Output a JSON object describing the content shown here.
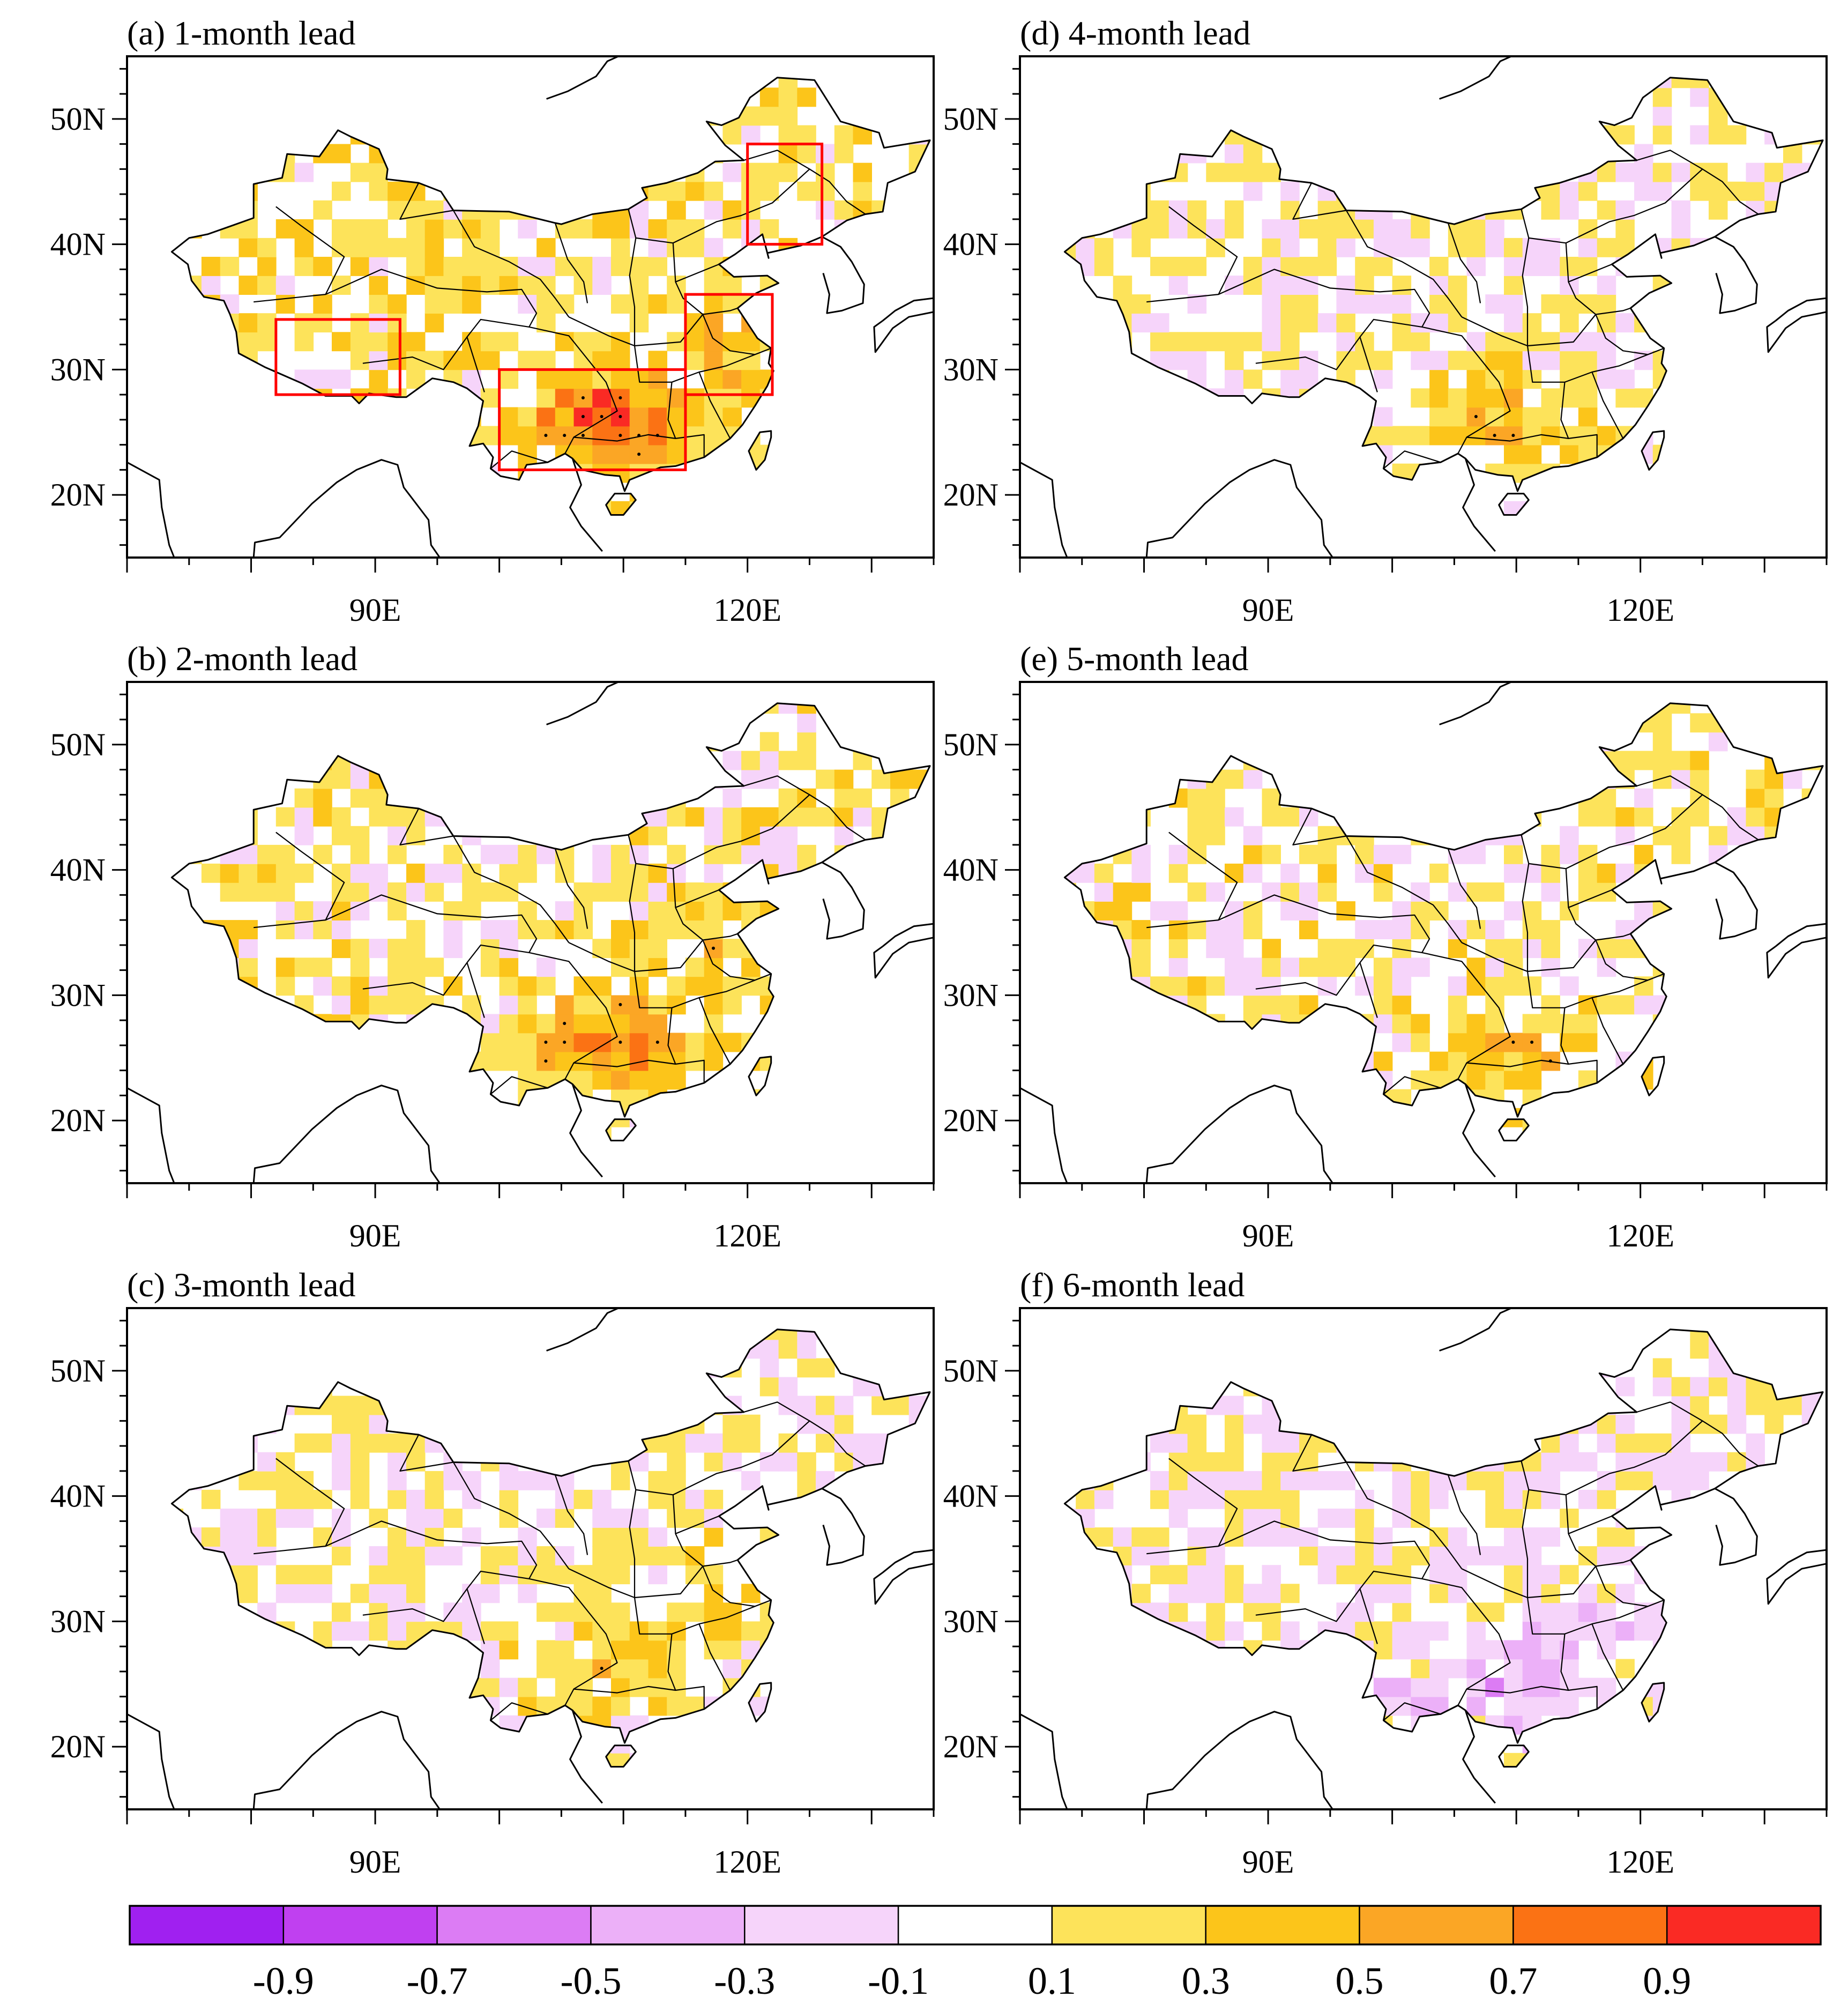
{
  "panels": [
    {
      "title": "(a) 1-month lead",
      "lat_labels": [
        "50N",
        "40N",
        "30N",
        "20N"
      ],
      "lon_labels": [
        "90E",
        "120E"
      ]
    },
    {
      "title": "(b) 2-month lead",
      "lat_labels": [
        "50N",
        "40N",
        "30N",
        "20N"
      ],
      "lon_labels": [
        "90E",
        "120E"
      ]
    },
    {
      "title": "(c) 3-month lead",
      "lat_labels": [
        "50N",
        "40N",
        "30N",
        "20N"
      ],
      "lon_labels": [
        "90E",
        "120E"
      ]
    },
    {
      "title": "(d) 4-month lead",
      "lat_labels": [
        "50N",
        "40N",
        "30N",
        "20N"
      ],
      "lon_labels": [
        "90E",
        "120E"
      ]
    },
    {
      "title": "(e) 5-month lead",
      "lat_labels": [
        "50N",
        "40N",
        "30N",
        "20N"
      ],
      "lon_labels": [
        "90E",
        "120E"
      ]
    },
    {
      "title": "(f) 6-month lead",
      "lat_labels": [
        "50N",
        "40N",
        "30N",
        "20N"
      ],
      "lon_labels": [
        "90E",
        "120E"
      ]
    }
  ],
  "map_extent": {
    "lon_min": 70,
    "lon_max": 135,
    "lat_min": 15,
    "lat_max": 55
  },
  "highlight_regions_panel_a": [
    {
      "lon_min": 82,
      "lon_max": 92,
      "lat_min": 28,
      "lat_max": 34
    },
    {
      "lon_min": 100,
      "lon_max": 115,
      "lat_min": 22,
      "lat_max": 30
    },
    {
      "lon_min": 115,
      "lon_max": 122,
      "lat_min": 28,
      "lat_max": 36
    },
    {
      "lon_min": 120,
      "lon_max": 126,
      "lat_min": 40,
      "lat_max": 48
    }
  ],
  "colorbar": {
    "colors": [
      "#a020f0",
      "#c040f0",
      "#dc7cf4",
      "#ecb0f8",
      "#f6d4fa",
      "#ffffff",
      "#fde35a",
      "#fcc51a",
      "#fba625",
      "#fb7214",
      "#fa2a24"
    ],
    "labels": [
      "-0.9",
      "-0.7",
      "-0.5",
      "-0.3",
      "-0.1",
      "0.1",
      "0.3",
      "0.5",
      "0.7",
      "0.9"
    ]
  },
  "colors": {
    "highlight_box": "#ff0000",
    "frame": "#000000"
  }
}
